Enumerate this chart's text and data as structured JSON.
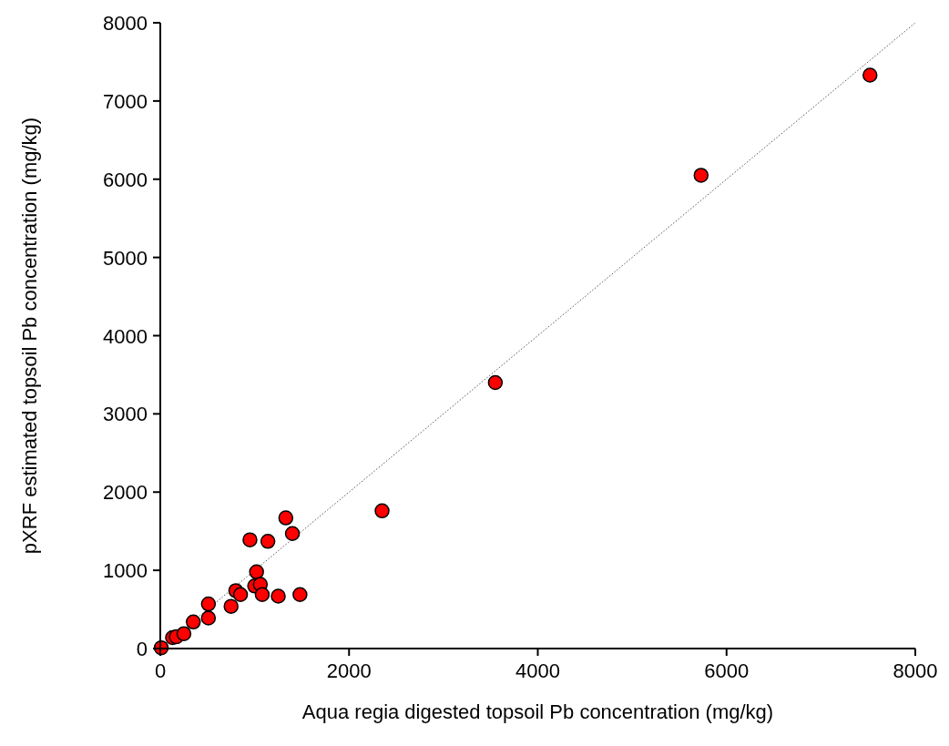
{
  "chart_data": {
    "type": "scatter",
    "xlabel": "Aqua regia digested topsoil Pb concentration (mg/kg)",
    "ylabel": "pXRF estimated topsoil Pb concentration (mg/kg)",
    "xlim": [
      0,
      8000
    ],
    "ylim": [
      0,
      8000
    ],
    "xticks": [
      0,
      2000,
      4000,
      6000,
      8000
    ],
    "yticks": [
      0,
      1000,
      2000,
      3000,
      4000,
      5000,
      6000,
      7000,
      8000
    ],
    "grid": false,
    "marker": "circle",
    "series": [
      {
        "type": "line",
        "color": "#555555",
        "line_style": "dotted",
        "marker": "none",
        "x": [
          0,
          8000
        ],
        "values": [
          0,
          8000
        ]
      },
      {
        "color": "#ff0000",
        "x": [
          10,
          130,
          170,
          250,
          350,
          510,
          510,
          750,
          800,
          850,
          950,
          1020,
          1000,
          1060,
          1080,
          1140,
          1250,
          1330,
          1400,
          1480,
          2350,
          3550,
          5730,
          7520
        ],
        "values": [
          10,
          140,
          150,
          190,
          340,
          390,
          570,
          540,
          740,
          690,
          1390,
          980,
          800,
          820,
          690,
          1370,
          670,
          1670,
          1470,
          690,
          1760,
          3400,
          6050,
          7330
        ]
      }
    ]
  }
}
